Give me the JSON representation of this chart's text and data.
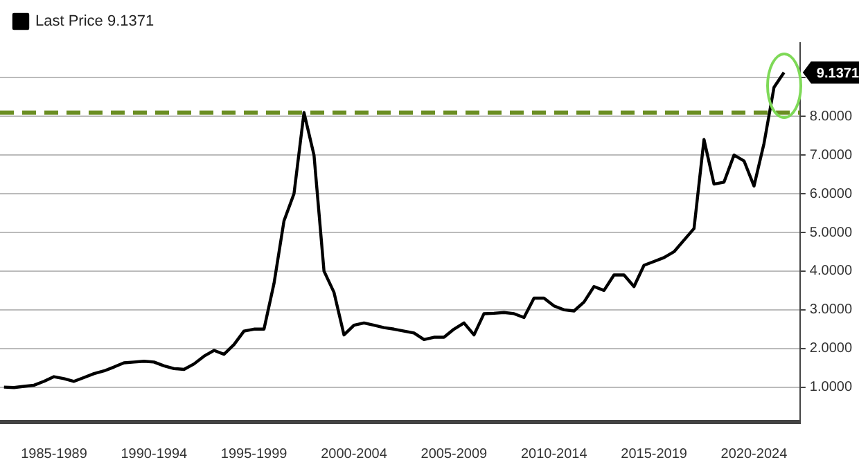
{
  "chart_data": {
    "type": "line",
    "ylim": [
      0.1,
      9.9
    ],
    "categories": [
      null,
      null,
      null,
      null,
      null,
      "1985-1989",
      null,
      null,
      null,
      null,
      null,
      null,
      null,
      null,
      null,
      "1990-1994",
      null,
      null,
      null,
      null,
      null,
      null,
      null,
      null,
      null,
      "1995-1999",
      null,
      null,
      null,
      null,
      null,
      null,
      null,
      null,
      null,
      "2000-2004",
      null,
      null,
      null,
      null,
      null,
      null,
      null,
      null,
      null,
      "2005-2009",
      null,
      null,
      null,
      null,
      null,
      null,
      null,
      null,
      null,
      "2010-2014",
      null,
      null,
      null,
      null,
      null,
      null,
      null,
      null,
      null,
      "2015-2019",
      null,
      null,
      null,
      null,
      null,
      null,
      null,
      null,
      null,
      "2020-2024",
      null,
      null,
      null
    ],
    "yticks": [
      {
        "value": 1,
        "label": "1.0000"
      },
      {
        "value": 2,
        "label": "2.0000"
      },
      {
        "value": 3,
        "label": "3.0000"
      },
      {
        "value": 4,
        "label": "4.0000"
      },
      {
        "value": 5,
        "label": "5.0000"
      },
      {
        "value": 6,
        "label": "6.0000"
      },
      {
        "value": 7,
        "label": "7.0000"
      },
      {
        "value": 8,
        "label": "8.0000"
      },
      {
        "value": 9,
        "label": null
      }
    ],
    "grid": true,
    "legend": "top left",
    "marker": "none",
    "line_style": "solid",
    "series": [
      {
        "name": "Last Price 9.1371",
        "color": "#000000",
        "values": [
          1.0,
          0.99,
          1.02,
          1.05,
          1.15,
          1.27,
          1.22,
          1.15,
          1.25,
          1.35,
          1.42,
          1.52,
          1.63,
          1.65,
          1.67,
          1.65,
          1.55,
          1.48,
          1.46,
          1.6,
          1.8,
          1.95,
          1.85,
          2.1,
          2.45,
          2.5,
          2.5,
          3.68,
          5.3,
          6.0,
          8.1,
          7.0,
          4.0,
          3.45,
          2.35,
          2.6,
          2.66,
          2.6,
          2.54,
          2.5,
          2.45,
          2.4,
          2.23,
          2.29,
          2.29,
          2.5,
          2.66,
          2.35,
          2.9,
          2.91,
          2.93,
          2.9,
          2.8,
          3.3,
          3.3,
          3.1,
          3.0,
          2.97,
          3.2,
          3.6,
          3.5,
          3.9,
          3.9,
          3.6,
          4.15,
          4.25,
          4.35,
          4.5,
          4.8,
          5.1,
          7.4,
          6.25,
          6.3,
          7.0,
          6.85,
          6.2,
          7.3,
          8.75,
          9.1371
        ]
      }
    ],
    "ref_lines": [
      {
        "axis": "y",
        "value": 8.1,
        "color": "#6b8e23",
        "line_style": "dashed"
      }
    ],
    "annotations": [
      "9.1371"
    ]
  }
}
